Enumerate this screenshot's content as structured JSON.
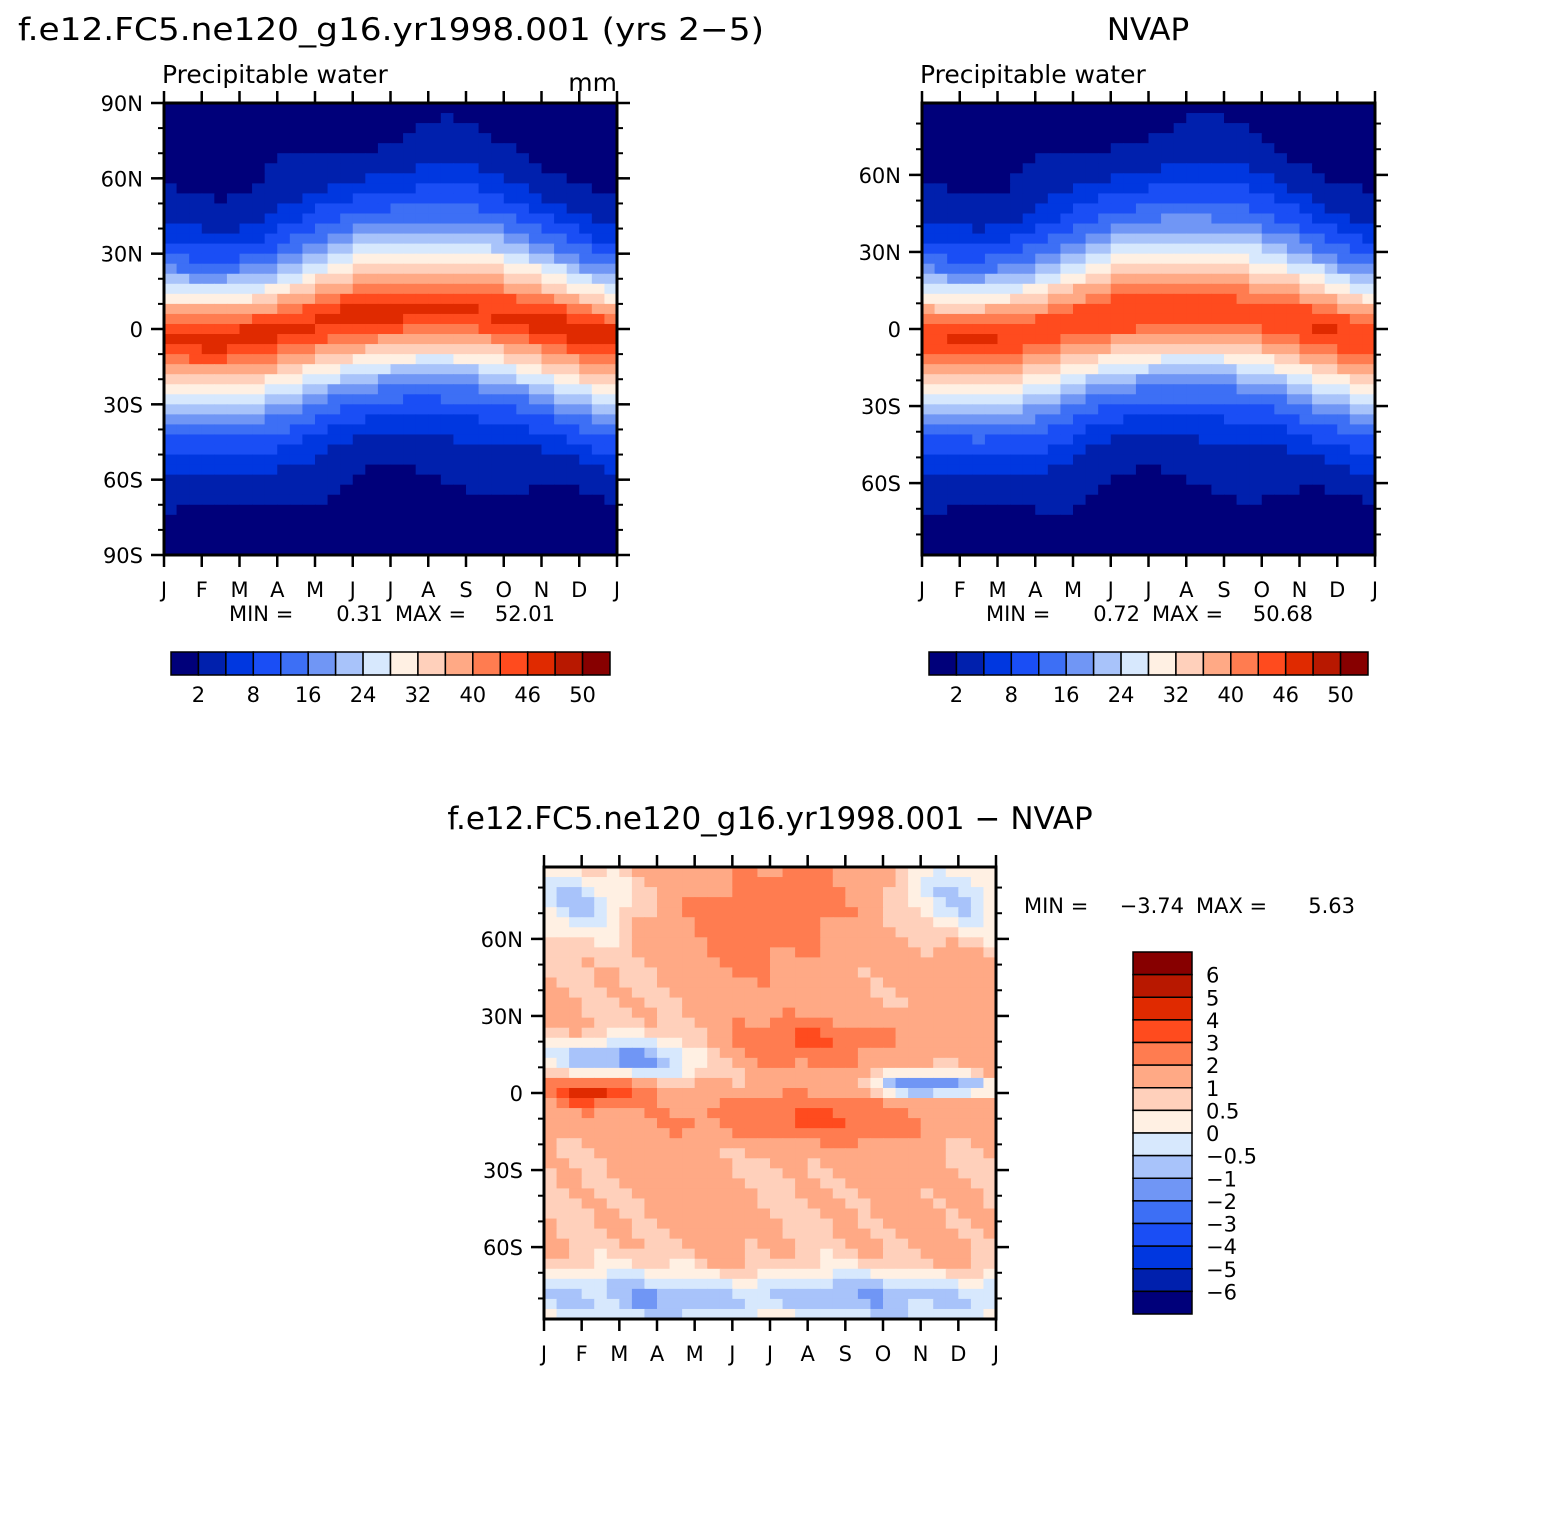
{
  "chart_data": [
    {
      "type": "heatmap",
      "title": "f.e12.FC5.ne120_g16.yr1998.001 (yrs 2−5)",
      "subtitle": "Precipitable water",
      "units": "mm",
      "x_ticks": [
        "J",
        "F",
        "M",
        "A",
        "M",
        "J",
        "J",
        "A",
        "S",
        "O",
        "N",
        "D",
        "J"
      ],
      "y_ticks": [
        "90N",
        "60N",
        "30N",
        "0",
        "30S",
        "60S",
        "90S"
      ],
      "y_tick_values": [
        90,
        60,
        30,
        0,
        -30,
        -60,
        -90
      ],
      "ylim": [
        -90,
        90
      ],
      "min_label": "MIN =",
      "min_value": "0.31",
      "max_label": "MAX =",
      "max_value": "52.01",
      "levels_label": [
        "2",
        "8",
        "16",
        "24",
        "32",
        "40",
        "46",
        "50"
      ],
      "peak_value": 52.0
    },
    {
      "type": "heatmap",
      "title": "NVAP",
      "subtitle": "Precipitable water",
      "x_ticks": [
        "J",
        "F",
        "M",
        "A",
        "M",
        "J",
        "J",
        "A",
        "S",
        "O",
        "N",
        "D",
        "J"
      ],
      "y_ticks": [
        "60N",
        "30N",
        "0",
        "30S",
        "60S"
      ],
      "y_tick_values": [
        60,
        30,
        0,
        -30,
        -60
      ],
      "ylim": [
        -88,
        88
      ],
      "min_label": "MIN =",
      "min_value": "0.72",
      "max_label": "MAX =",
      "max_value": "50.68",
      "levels_label": [
        "2",
        "8",
        "16",
        "24",
        "32",
        "40",
        "46",
        "50"
      ],
      "peak_value": 50.7
    },
    {
      "type": "heatmap",
      "title": "f.e12.FC5.ne120_g16.yr1998.001 − NVAP",
      "x_ticks": [
        "J",
        "F",
        "M",
        "A",
        "M",
        "J",
        "J",
        "A",
        "S",
        "O",
        "N",
        "D",
        "J"
      ],
      "y_ticks": [
        "60N",
        "30N",
        "0",
        "30S",
        "60S"
      ],
      "y_tick_values": [
        60,
        30,
        0,
        -30,
        -60
      ],
      "ylim": [
        -88,
        88
      ],
      "min_label": "MIN =",
      "min_value": "−3.74",
      "max_label": "MAX =",
      "max_value": "5.63",
      "levels_label": [
        "6",
        "5",
        "4",
        "3",
        "2",
        "1",
        "0.5",
        "0",
        "−0.5",
        "−1",
        "−2",
        "−3",
        "−4",
        "−5",
        "−6"
      ]
    }
  ],
  "colors": {
    "palette16": [
      "#00007a",
      "#0020ad",
      "#0037e0",
      "#1a4ef5",
      "#3d6ff5",
      "#7096f5",
      "#a8c3fa",
      "#d7e8fd",
      "#fff0e3",
      "#ffd0bb",
      "#ffa985",
      "#ff7c50",
      "#ff4b1e",
      "#e02a00",
      "#b81800",
      "#870000"
    ]
  }
}
